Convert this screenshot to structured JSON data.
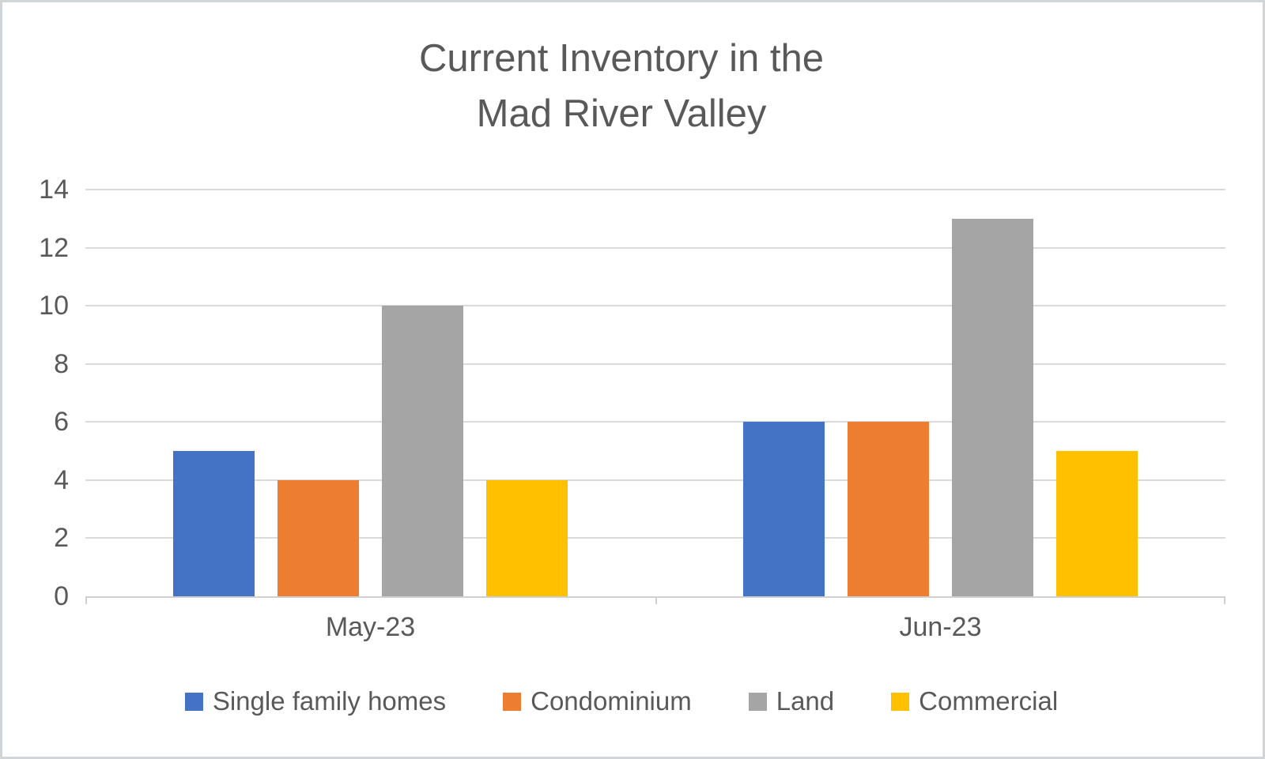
{
  "frame": {
    "background": "#ffffff",
    "border_color": "#d2d5d8"
  },
  "chart_data": {
    "type": "bar",
    "title": "Current Inventory in the Mad River Valley",
    "title_lines": [
      "Current Inventory in the",
      "Mad River Valley"
    ],
    "title_color": "#595959",
    "categories": [
      "May-23",
      "Jun-23"
    ],
    "series": [
      {
        "name": "Single family homes",
        "color": "#4472C4",
        "values": [
          5,
          6
        ]
      },
      {
        "name": "Condominium",
        "color": "#ED7D31",
        "values": [
          4,
          6
        ]
      },
      {
        "name": "Land",
        "color": "#A5A5A5",
        "values": [
          10,
          13
        ]
      },
      {
        "name": "Commercial",
        "color": "#FFC000",
        "values": [
          4,
          5
        ]
      }
    ],
    "xlabel": "",
    "ylabel": "",
    "ylim": [
      0,
      14
    ],
    "y_ticks": [
      0,
      2,
      4,
      6,
      8,
      10,
      12,
      14
    ],
    "grid": "horizontal",
    "gridline_color": "#dadada",
    "axis_line_color": "#d0d0d0",
    "tick_label_color": "#595959",
    "legend_position": "bottom"
  }
}
